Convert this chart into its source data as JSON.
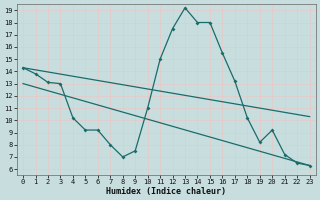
{
  "xlabel": "Humidex (Indice chaleur)",
  "bg_color": "#c8dede",
  "plot_bg_color": "#c8dede",
  "line_color": "#1a6b6b",
  "grid_color": "#e8c8c8",
  "xlim": [
    -0.5,
    23.5
  ],
  "ylim": [
    5.5,
    19.5
  ],
  "xticks": [
    0,
    1,
    2,
    3,
    4,
    5,
    6,
    7,
    8,
    9,
    10,
    11,
    12,
    13,
    14,
    15,
    16,
    17,
    18,
    19,
    20,
    21,
    22,
    23
  ],
  "yticks": [
    6,
    7,
    8,
    9,
    10,
    11,
    12,
    13,
    14,
    15,
    16,
    17,
    18,
    19
  ],
  "line1_x": [
    0,
    1,
    2,
    3,
    4,
    5,
    6,
    7,
    8,
    9,
    10,
    11,
    12,
    13,
    14,
    15,
    16,
    17,
    18,
    19,
    20,
    21,
    22,
    23
  ],
  "line1_y": [
    14.3,
    13.8,
    13.1,
    13.0,
    10.2,
    9.2,
    9.2,
    8.0,
    7.0,
    7.5,
    11.0,
    15.0,
    17.5,
    19.2,
    18.0,
    18.0,
    15.5,
    13.2,
    10.2,
    8.2,
    9.2,
    7.2,
    6.5,
    6.3
  ],
  "line2_x": [
    0,
    23
  ],
  "line2_y": [
    14.3,
    10.3
  ],
  "line3_x": [
    0,
    23
  ],
  "line3_y": [
    13.0,
    6.3
  ],
  "marker": "D",
  "markersize": 2.0,
  "linewidth": 0.9,
  "tick_fontsize": 5.0,
  "xlabel_fontsize": 6.0
}
